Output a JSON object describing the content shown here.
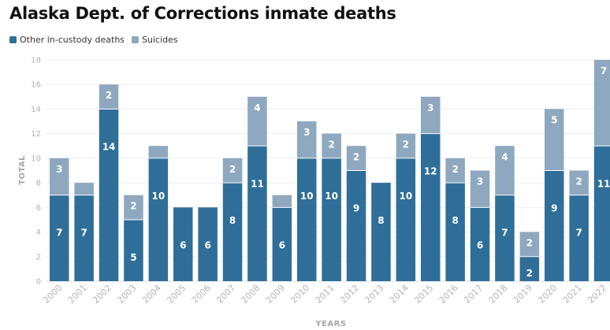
{
  "chart_data": {
    "type": "bar",
    "stacked": true,
    "title": "Alaska Dept. of Corrections inmate deaths",
    "xlabel": "YEARS",
    "ylabel": "TOTAL",
    "ylim": [
      0,
      18
    ],
    "yticks": [
      0,
      2,
      4,
      6,
      8,
      10,
      12,
      14,
      16,
      18
    ],
    "grid": true,
    "legend_position": "top-left",
    "categories": [
      "2000",
      "2001",
      "2002",
      "2003",
      "2004",
      "2005",
      "2006",
      "2007",
      "2008",
      "2009",
      "2010",
      "2011",
      "2012",
      "2013",
      "2014",
      "2015",
      "2016",
      "2017",
      "2018",
      "2019",
      "2020",
      "2021",
      "2022"
    ],
    "series": [
      {
        "name": "Other in-custody deaths",
        "color": "#2f6e99",
        "values": [
          7,
          7,
          14,
          5,
          10,
          6,
          6,
          8,
          11,
          6,
          10,
          10,
          9,
          8,
          10,
          12,
          8,
          6,
          7,
          2,
          9,
          7,
          11
        ],
        "labels": [
          "7",
          "7",
          "14",
          "5",
          "10",
          "6",
          "6",
          "8",
          "11",
          "6",
          "10",
          "10",
          "9",
          "8",
          "10",
          "12",
          "8",
          "6",
          "7",
          "2",
          "9",
          "7",
          "11"
        ]
      },
      {
        "name": "Suicides",
        "color": "#8ea8bf",
        "values": [
          3,
          1,
          2,
          2,
          1,
          0,
          0,
          2,
          4,
          1,
          3,
          2,
          2,
          0,
          2,
          3,
          2,
          3,
          4,
          2,
          5,
          2,
          7
        ],
        "labels": [
          "3",
          "",
          "2",
          "2",
          "",
          "",
          "",
          "2",
          "4",
          "",
          "3",
          "2",
          "2",
          "",
          "2",
          "3",
          "2",
          "3",
          "4",
          "2",
          "5",
          "2",
          "7"
        ]
      }
    ]
  }
}
